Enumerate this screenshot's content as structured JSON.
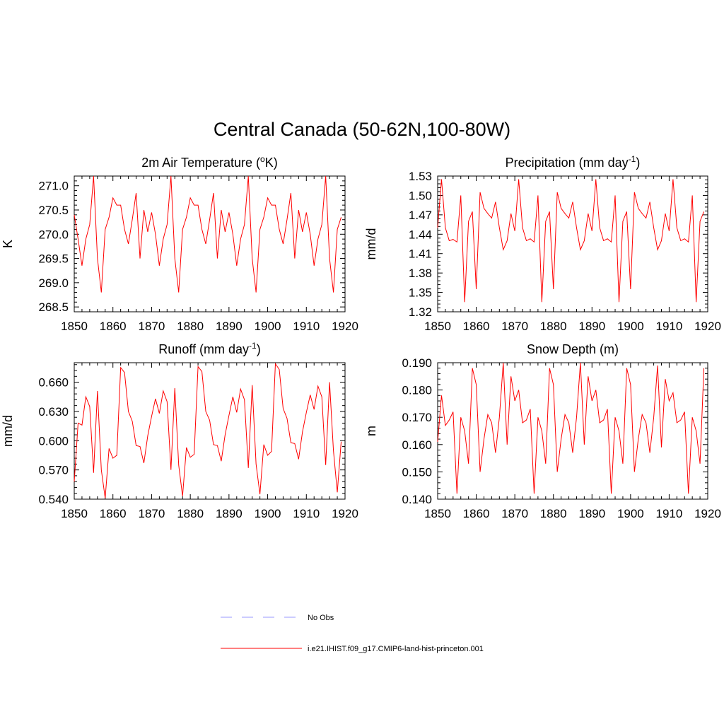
{
  "title": "Central Canada (50-62N,100-80W)",
  "colors": {
    "model": "#ff0000",
    "obs": "#9999ff",
    "axis": "#000000"
  },
  "legend": [
    {
      "label": "No Obs",
      "style": "dashed",
      "color": "#9999ff"
    },
    {
      "label": "i.e21.IHIST.f09_g17.CMIP6-land-hist-princeton.001",
      "style": "solid",
      "color": "#ff0000"
    }
  ],
  "chart_data": [
    {
      "type": "line",
      "title": "2m Air Temperature (",
      "title_sup": "o",
      "title_after": "K)",
      "ylabel": "K",
      "xlim": [
        1850,
        1920
      ],
      "ylim": [
        268.4,
        271.2
      ],
      "xticks": [
        "1850",
        "1860",
        "1870",
        "1880",
        "1890",
        "1900",
        "1910",
        "1920"
      ],
      "yticks": [
        "268.5",
        "269.0",
        "269.5",
        "270.0",
        "270.5",
        "271.0"
      ],
      "ytick_values": [
        268.5,
        269.0,
        269.5,
        270.0,
        270.5,
        271.0
      ],
      "x_start": 1850,
      "series": [
        {
          "values": [
            270.4,
            269.9,
            269.35,
            269.9,
            270.2,
            271.2,
            269.5,
            268.8,
            270.1,
            270.35,
            270.75,
            270.6,
            270.6,
            270.1,
            269.8,
            270.3,
            270.85,
            269.5,
            270.5,
            270.05,
            270.45,
            270.0,
            269.35,
            269.9,
            270.2,
            271.2,
            269.5,
            268.8,
            270.1,
            270.35,
            270.75,
            270.6,
            270.6,
            270.1,
            269.8,
            270.3,
            270.85,
            269.5,
            270.5,
            270.05,
            270.45,
            270.0,
            269.35,
            269.9,
            270.2,
            271.2,
            269.5,
            268.8,
            270.1,
            270.35,
            270.75,
            270.6,
            270.6,
            270.1,
            269.8,
            270.3,
            270.85,
            269.5,
            270.5,
            270.05,
            270.45,
            270.0,
            269.35,
            269.9,
            270.2,
            271.2,
            269.5,
            268.8,
            270.1,
            270.35
          ]
        }
      ]
    },
    {
      "type": "line",
      "title": "Precipitation (mm day",
      "title_sup": "-1",
      "title_after": ")",
      "ylabel": "mm/d",
      "xlim": [
        1850,
        1920
      ],
      "ylim": [
        1.32,
        1.53
      ],
      "xticks": [
        "1850",
        "1860",
        "1870",
        "1880",
        "1890",
        "1900",
        "1910",
        "1920"
      ],
      "yticks": [
        "1.32",
        "1.35",
        "1.38",
        "1.41",
        "1.44",
        "1.47",
        "1.50",
        "1.53"
      ],
      "ytick_values": [
        1.32,
        1.35,
        1.38,
        1.41,
        1.44,
        1.47,
        1.5,
        1.53
      ],
      "x_start": 1850,
      "series": [
        {
          "values": [
            1.45,
            1.525,
            1.45,
            1.43,
            1.432,
            1.428,
            1.5,
            1.335,
            1.46,
            1.475,
            1.355,
            1.505,
            1.48,
            1.472,
            1.465,
            1.49,
            1.45,
            1.416,
            1.43,
            1.472,
            1.445,
            1.525,
            1.45,
            1.43,
            1.433,
            1.428,
            1.5,
            1.335,
            1.46,
            1.475,
            1.355,
            1.505,
            1.48,
            1.472,
            1.465,
            1.49,
            1.45,
            1.416,
            1.43,
            1.472,
            1.445,
            1.525,
            1.45,
            1.43,
            1.433,
            1.428,
            1.5,
            1.335,
            1.46,
            1.475,
            1.355,
            1.505,
            1.48,
            1.472,
            1.465,
            1.49,
            1.45,
            1.416,
            1.43,
            1.472,
            1.445,
            1.525,
            1.45,
            1.43,
            1.433,
            1.428,
            1.5,
            1.335,
            1.46,
            1.475
          ]
        }
      ]
    },
    {
      "type": "line",
      "title": "Runoff (mm day",
      "title_sup": "-1",
      "title_after": ")",
      "ylabel": "mm/d",
      "xlim": [
        1850,
        1920
      ],
      "ylim": [
        0.54,
        0.68
      ],
      "xticks": [
        "1850",
        "1860",
        "1870",
        "1880",
        "1890",
        "1900",
        "1910",
        "1920"
      ],
      "yticks": [
        "0.540",
        "0.570",
        "0.600",
        "0.630",
        "0.660"
      ],
      "ytick_values": [
        0.54,
        0.57,
        0.6,
        0.63,
        0.66
      ],
      "x_start": 1850,
      "series": [
        {
          "values": [
            0.558,
            0.618,
            0.616,
            0.645,
            0.635,
            0.567,
            0.651,
            0.57,
            0.541,
            0.592,
            0.582,
            0.585,
            0.675,
            0.67,
            0.63,
            0.62,
            0.595,
            0.594,
            0.577,
            0.605,
            0.625,
            0.643,
            0.628,
            0.651,
            0.64,
            0.57,
            0.654,
            0.575,
            0.543,
            0.593,
            0.583,
            0.586,
            0.676,
            0.671,
            0.63,
            0.621,
            0.596,
            0.595,
            0.579,
            0.606,
            0.626,
            0.645,
            0.629,
            0.653,
            0.642,
            0.572,
            0.657,
            0.576,
            0.545,
            0.596,
            0.585,
            0.589,
            0.679,
            0.673,
            0.633,
            0.623,
            0.598,
            0.597,
            0.581,
            0.609,
            0.629,
            0.647,
            0.632,
            0.656,
            0.645,
            0.575,
            0.66,
            0.59,
            0.547,
            0.599
          ]
        }
      ]
    },
    {
      "type": "line",
      "title": "Snow Depth (m)",
      "title_sup": "",
      "title_after": "",
      "ylabel": "m",
      "xlim": [
        1850,
        1920
      ],
      "ylim": [
        0.14,
        0.19
      ],
      "xticks": [
        "1850",
        "1860",
        "1870",
        "1880",
        "1890",
        "1900",
        "1910",
        "1920"
      ],
      "yticks": [
        "0.140",
        "0.150",
        "0.160",
        "0.170",
        "0.180",
        "0.190"
      ],
      "ytick_values": [
        0.14,
        0.15,
        0.16,
        0.17,
        0.18,
        0.19
      ],
      "x_start": 1850,
      "series": [
        {
          "values": [
            0.161,
            0.178,
            0.167,
            0.169,
            0.172,
            0.142,
            0.17,
            0.165,
            0.153,
            0.188,
            0.182,
            0.15,
            0.162,
            0.171,
            0.168,
            0.157,
            0.17,
            0.19,
            0.16,
            0.185,
            0.176,
            0.18,
            0.168,
            0.169,
            0.173,
            0.142,
            0.17,
            0.165,
            0.153,
            0.188,
            0.182,
            0.15,
            0.162,
            0.171,
            0.168,
            0.157,
            0.17,
            0.19,
            0.16,
            0.185,
            0.176,
            0.18,
            0.168,
            0.169,
            0.173,
            0.142,
            0.17,
            0.165,
            0.153,
            0.188,
            0.182,
            0.15,
            0.162,
            0.171,
            0.168,
            0.157,
            0.17,
            0.189,
            0.159,
            0.184,
            0.176,
            0.179,
            0.168,
            0.169,
            0.172,
            0.142,
            0.17,
            0.165,
            0.153,
            0.188
          ]
        }
      ]
    }
  ]
}
